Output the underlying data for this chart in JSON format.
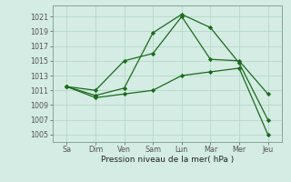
{
  "xlabel": "Pression niveau de la mer( hPa )",
  "background_color": "#d4ece4",
  "grid_color": "#b0d4c4",
  "line_color": "#1a6b1a",
  "x_labels": [
    "Sa\u0000Dim",
    "Dim",
    "Ven",
    "Sam",
    "Lun",
    "Mar",
    "Mer",
    "Jeu"
  ],
  "x_labels_display": [
    "Sa Dim",
    "Ven",
    "Sam",
    "Lun",
    "Mar",
    "Mer",
    "Jeu"
  ],
  "x_positions": [
    0,
    1,
    2,
    3,
    4,
    5,
    6,
    7
  ],
  "x_tick_labels": [
    "Sa",
    "Dim",
    "Ven",
    "Sam",
    "Lun",
    "Mar",
    "Mer",
    "Jeu"
  ],
  "ylim": [
    1004.0,
    1022.5
  ],
  "yticks": [
    1005,
    1007,
    1009,
    1011,
    1013,
    1015,
    1017,
    1019,
    1021
  ],
  "line1_high": [
    1011.5,
    1011.0,
    1015.0,
    1016.0,
    1021.0,
    1015.2,
    1015.0,
    1010.5
  ],
  "line2_mid": [
    1011.5,
    1010.3,
    1011.3,
    1018.8,
    1021.3,
    1019.5,
    1014.7,
    1007.0
  ],
  "line3_low": [
    1011.5,
    1010.0,
    1010.5,
    1011.0,
    1013.0,
    1013.5,
    1014.0,
    1005.0
  ]
}
